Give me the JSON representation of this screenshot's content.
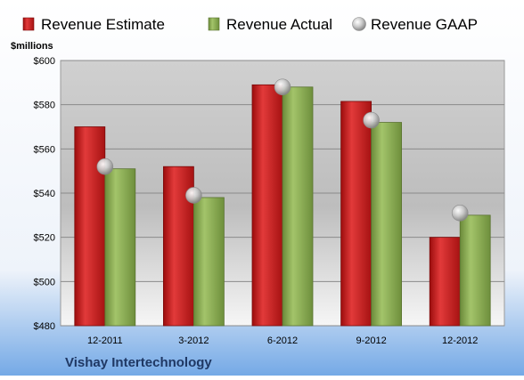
{
  "chart_data": {
    "type": "bar",
    "title": "",
    "ylabel": "$millions",
    "ylim": [
      480,
      600
    ],
    "yticks": [
      "$480",
      "$500",
      "$520",
      "$540",
      "$560",
      "$580",
      "$600"
    ],
    "categories": [
      "12-2011",
      "3-2012",
      "6-2012",
      "9-2012",
      "12-2012"
    ],
    "series": [
      {
        "name": "Revenue Estimate",
        "kind": "bar",
        "color": "#d42020",
        "values": [
          570,
          552,
          589,
          581.5,
          520
        ]
      },
      {
        "name": "Revenue Actual",
        "kind": "bar",
        "color": "#8cae52",
        "values": [
          551,
          538,
          588,
          572,
          530
        ]
      },
      {
        "name": "Revenue GAAP",
        "kind": "marker",
        "color": "#b8b8b8",
        "values": [
          552,
          539,
          588,
          573,
          531
        ]
      }
    ],
    "grid": true,
    "legend": "top"
  },
  "footer": {
    "company": "Vishay Intertechnology"
  }
}
